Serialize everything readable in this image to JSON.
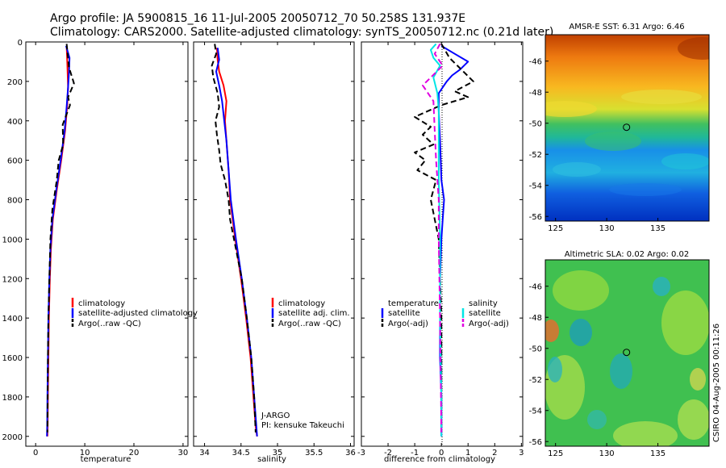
{
  "header": {
    "line1": "Argo profile: JA 5900815_16 11-Jul-2005 20050712_70 50.258S 131.937E",
    "line2": "Climatology: CARS2000. Satellite-adjusted climatology: synTS_20050712.nc (0.21d later)"
  },
  "colors": {
    "climatology": "#ff0000",
    "satellite": "#0000ff",
    "argo": "#000000",
    "salinity_sat": "#00e5e5",
    "salinity_argo": "#e000e0"
  },
  "chart_data": [
    {
      "id": "temperature",
      "type": "line",
      "xlabel": "temperature",
      "xlim": [
        -2,
        31
      ],
      "ylim": [
        0,
        2050
      ],
      "xticks": [
        0,
        10,
        20,
        30
      ],
      "yticks": [
        0,
        200,
        400,
        600,
        800,
        1000,
        1200,
        1400,
        1600,
        1800,
        2000
      ],
      "legend": [
        "climatology",
        "satellite-adjusted climatology",
        "Argo(..raw -QC)"
      ],
      "series": [
        {
          "name": "climatology",
          "style": "solid",
          "color": "#ff0000",
          "x": [
            6.3,
            6.4,
            6.5,
            6.6,
            6.4,
            6.0,
            5.2,
            4.3,
            3.5,
            3.1,
            2.9,
            2.7,
            2.6,
            2.5,
            2.45,
            2.4
          ],
          "y": [
            20,
            80,
            150,
            230,
            330,
            450,
            600,
            750,
            900,
            1050,
            1200,
            1400,
            1600,
            1800,
            1950,
            2000
          ]
        },
        {
          "name": "satellite-adjusted climatology",
          "style": "solid",
          "color": "#0000ff",
          "x": [
            6.2,
            6.9,
            6.8,
            6.6,
            6.3,
            5.9,
            5.1,
            4.2,
            3.4,
            3.0,
            2.8,
            2.6,
            2.5,
            2.4,
            2.35,
            2.3
          ],
          "y": [
            20,
            80,
            150,
            230,
            330,
            450,
            600,
            750,
            900,
            1050,
            1200,
            1400,
            1600,
            1800,
            1950,
            2000
          ]
        },
        {
          "name": "Argo(..raw -QC)",
          "style": "dashed",
          "color": "#000000",
          "x": [
            6.3,
            6.5,
            6.8,
            7.8,
            6.6,
            7.0,
            5.5,
            5.6,
            4.7,
            4.3,
            3.4,
            3.0,
            2.8,
            2.6,
            2.5,
            2.45,
            2.4
          ],
          "y": [
            10,
            60,
            130,
            210,
            280,
            320,
            420,
            520,
            600,
            700,
            850,
            1000,
            1200,
            1400,
            1600,
            1800,
            1980
          ]
        }
      ]
    },
    {
      "id": "salinity",
      "type": "line",
      "xlabel": "salinity",
      "xlim": [
        33.85,
        36.05
      ],
      "ylim": [
        0,
        2050
      ],
      "xticks": [
        34,
        34.5,
        35,
        35.5,
        36
      ],
      "legend": [
        "climatology",
        "satellite adj. clim.",
        "Argo(..raw -QC)"
      ],
      "annotation": [
        "J-ARGO",
        "PI: kensuke Takeuchi"
      ],
      "series": [
        {
          "name": "climatology",
          "style": "solid",
          "color": "#ff0000",
          "x": [
            34.17,
            34.18,
            34.2,
            34.26,
            34.3,
            34.28,
            34.3,
            34.33,
            34.35,
            34.42,
            34.5,
            34.57,
            34.63,
            34.67,
            34.7,
            34.72
          ],
          "y": [
            30,
            90,
            150,
            220,
            300,
            400,
            500,
            650,
            800,
            1000,
            1200,
            1400,
            1600,
            1800,
            1950,
            2000
          ]
        },
        {
          "name": "satellite adj. clim.",
          "style": "solid",
          "color": "#0000ff",
          "x": [
            34.18,
            34.2,
            34.16,
            34.2,
            34.24,
            34.27,
            34.3,
            34.33,
            34.36,
            34.43,
            34.51,
            34.58,
            34.64,
            34.68,
            34.71,
            34.72
          ],
          "y": [
            30,
            90,
            150,
            220,
            300,
            400,
            500,
            650,
            800,
            1000,
            1200,
            1400,
            1600,
            1800,
            1950,
            2000
          ]
        },
        {
          "name": "Argo(..raw -QC)",
          "style": "dashed",
          "color": "#000000",
          "x": [
            34.14,
            34.16,
            34.1,
            34.12,
            34.18,
            34.2,
            34.15,
            34.17,
            34.2,
            34.22,
            34.28,
            34.33,
            34.35,
            34.43,
            34.51,
            34.58,
            34.64,
            34.68,
            34.7
          ],
          "y": [
            10,
            60,
            120,
            180,
            260,
            330,
            400,
            470,
            550,
            620,
            700,
            800,
            900,
            1050,
            1200,
            1400,
            1600,
            1800,
            1980
          ]
        }
      ]
    },
    {
      "id": "difference",
      "type": "line",
      "xlabel": "difference from climatology",
      "xlim": [
        -3,
        3.05
      ],
      "ylim": [
        0,
        2050
      ],
      "xticks": [
        -3,
        -2,
        -1,
        0,
        1,
        2,
        3
      ],
      "legend_left": {
        "header": "temperature",
        "items": [
          "satellite",
          "Argo(-adj)"
        ]
      },
      "legend_right": {
        "header": "salinity",
        "items": [
          "satellite",
          "Argo(-adj)"
        ]
      },
      "series": [
        {
          "name": "temperature satellite",
          "style": "solid",
          "color": "#0000ff",
          "x": [
            0.0,
            0.5,
            1.0,
            0.7,
            0.4,
            0.2,
            -0.1,
            -0.1,
            -0.05,
            0.0,
            0.1,
            0.05,
            0.0,
            -0.05,
            -0.05,
            -0.05,
            0.0,
            0.0
          ],
          "y": [
            20,
            60,
            100,
            140,
            170,
            200,
            260,
            350,
            500,
            700,
            800,
            900,
            1000,
            1200,
            1400,
            1600,
            1800,
            2000
          ]
        },
        {
          "name": "temperature Argo(-adj)",
          "style": "dashed",
          "color": "#000000",
          "x": [
            0.0,
            0.3,
            1.2,
            0.5,
            1.0,
            0.0,
            -1.0,
            -0.4,
            -0.7,
            -0.3,
            -1.0,
            -0.6,
            -0.9,
            -0.2,
            -0.4,
            -0.1,
            0.0,
            0.0
          ],
          "y": [
            10,
            80,
            200,
            250,
            280,
            320,
            380,
            430,
            470,
            520,
            560,
            600,
            650,
            700,
            800,
            1000,
            1400,
            1980
          ]
        },
        {
          "name": "salinity satellite",
          "style": "solid",
          "color": "#00e5e5",
          "x": [
            -0.2,
            -0.4,
            -0.3,
            -0.05,
            -0.3,
            -0.15,
            -0.1,
            -0.1,
            -0.1,
            -0.05,
            -0.05,
            0.0,
            0.0
          ],
          "y": [
            10,
            40,
            80,
            120,
            180,
            260,
            350,
            500,
            700,
            1000,
            1400,
            1800,
            2000
          ]
        },
        {
          "name": "salinity Argo(-adj)",
          "style": "dashed",
          "color": "#e000e0",
          "x": [
            -0.05,
            -0.25,
            0.05,
            -0.4,
            -0.7,
            -0.3,
            -0.25,
            -0.2,
            -0.1,
            -0.1,
            -0.05,
            0.0
          ],
          "y": [
            10,
            60,
            120,
            180,
            220,
            300,
            450,
            600,
            800,
            1000,
            1400,
            1980
          ]
        }
      ]
    },
    {
      "id": "sst-map",
      "type": "heatmap",
      "title": "AMSR-E SST: 6.31  Argo: 6.46",
      "xlim": [
        124,
        140
      ],
      "ylim": [
        -56.3,
        -44.3
      ],
      "xticks": [
        125,
        130,
        135
      ],
      "yticks": [
        -46,
        -48,
        -50,
        -52,
        -54,
        -56
      ],
      "marker": {
        "lon": 131.937,
        "lat": -50.258
      }
    },
    {
      "id": "sla-map",
      "type": "heatmap",
      "title": "Altimetric SLA: 0.02  Argo: 0.02",
      "xlim": [
        124,
        140
      ],
      "ylim": [
        -56.3,
        -44.3
      ],
      "xticks": [
        125,
        130,
        135
      ],
      "yticks": [
        -46,
        -48,
        -50,
        -52,
        -54,
        -56
      ],
      "marker": {
        "lon": 131.937,
        "lat": -50.258
      }
    }
  ],
  "side_label": "CSIRO 04-Aug-2005 00:11:26"
}
